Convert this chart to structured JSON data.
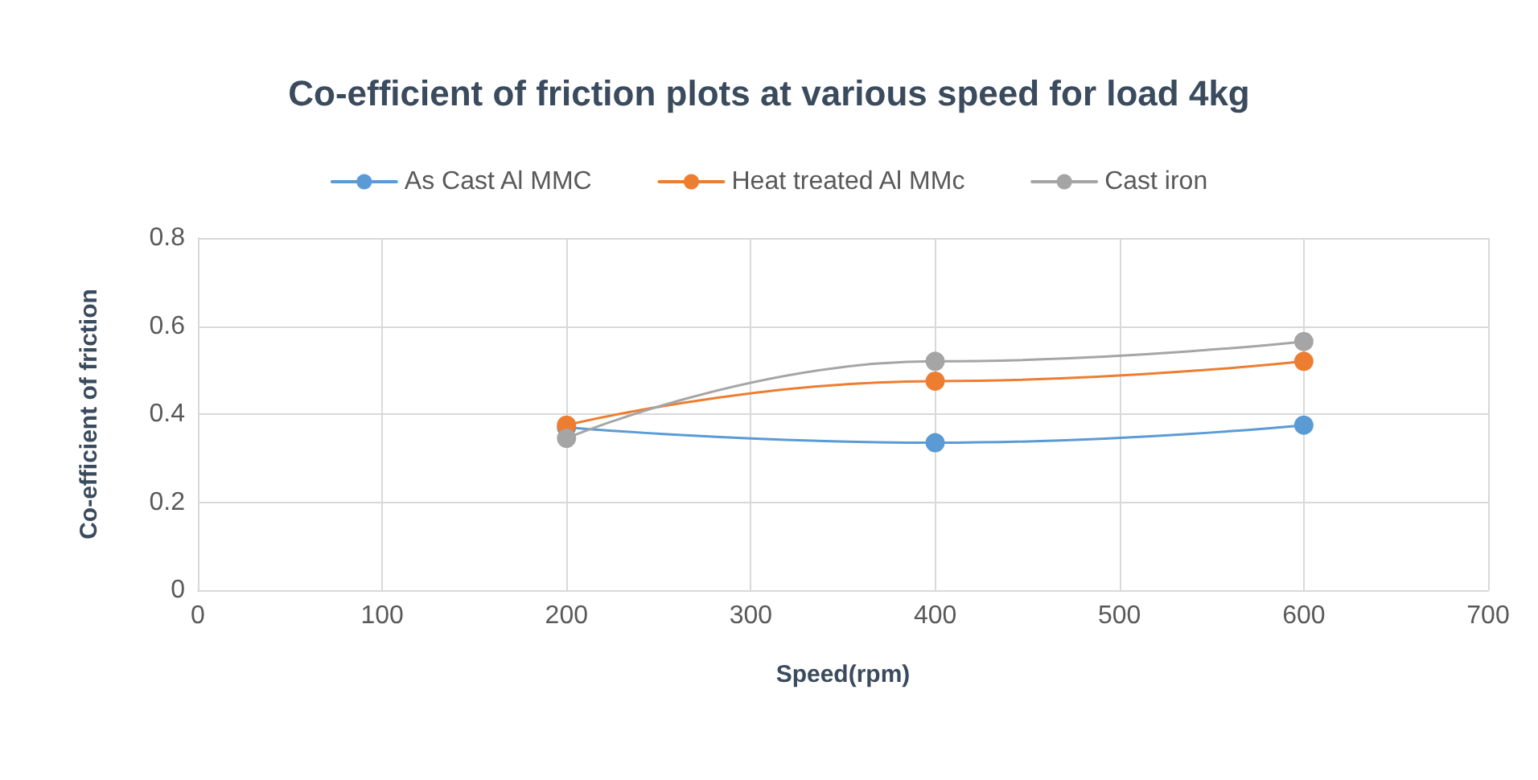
{
  "chart_data": {
    "type": "line",
    "title": "Co-efficient of friction plots at various speed for load 4kg",
    "xlabel": "Speed(rpm)",
    "ylabel": "Co-efficient of friction",
    "x": [
      200,
      400,
      600
    ],
    "series": [
      {
        "name": "As Cast Al MMC",
        "color": "#5b9bd5",
        "values": [
          0.37,
          0.335,
          0.375
        ]
      },
      {
        "name": "Heat treated Al MMc",
        "color": "#ed7d31",
        "values": [
          0.375,
          0.475,
          0.52
        ]
      },
      {
        "name": "Cast iron",
        "color": "#a5a5a5",
        "values": [
          0.345,
          0.52,
          0.565
        ]
      }
    ],
    "xlim": [
      0,
      700
    ],
    "xticks": [
      0,
      100,
      200,
      300,
      400,
      500,
      600,
      700
    ],
    "ylim": [
      0,
      0.8
    ],
    "yticks": [
      0,
      0.2,
      0.4,
      0.6,
      0.8
    ],
    "grid": true,
    "legend": "top",
    "marker": "circle",
    "line_style": "solid"
  }
}
